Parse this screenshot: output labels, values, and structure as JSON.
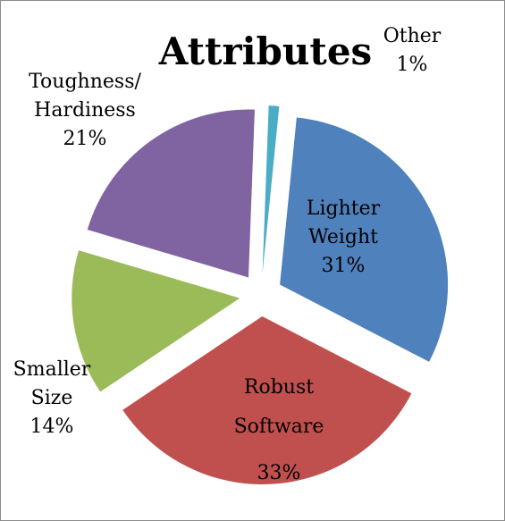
{
  "chart_data": {
    "type": "pie",
    "title": "Attributes",
    "exploded": true,
    "slices": [
      {
        "name": "Lighter Weight",
        "label_lines": [
          "Lighter",
          "Weight",
          "31%"
        ],
        "value": 31,
        "color": "#4f81bd"
      },
      {
        "name": "Robust Software",
        "label_lines": [
          "Robust",
          "Software",
          "33%"
        ],
        "value": 33,
        "color": "#c0504d"
      },
      {
        "name": "Smaller Size",
        "label_lines": [
          "Smaller",
          "Size",
          "14%"
        ],
        "value": 14,
        "color": "#9bbb59"
      },
      {
        "name": "Toughness/ Hardiness",
        "label_lines": [
          "Toughness/",
          "Hardiness",
          "21%"
        ],
        "value": 21,
        "color": "#8064a2"
      },
      {
        "name": "Other",
        "label_lines": [
          "Other",
          "1%"
        ],
        "value": 1,
        "color": "#4bacc6"
      }
    ]
  }
}
